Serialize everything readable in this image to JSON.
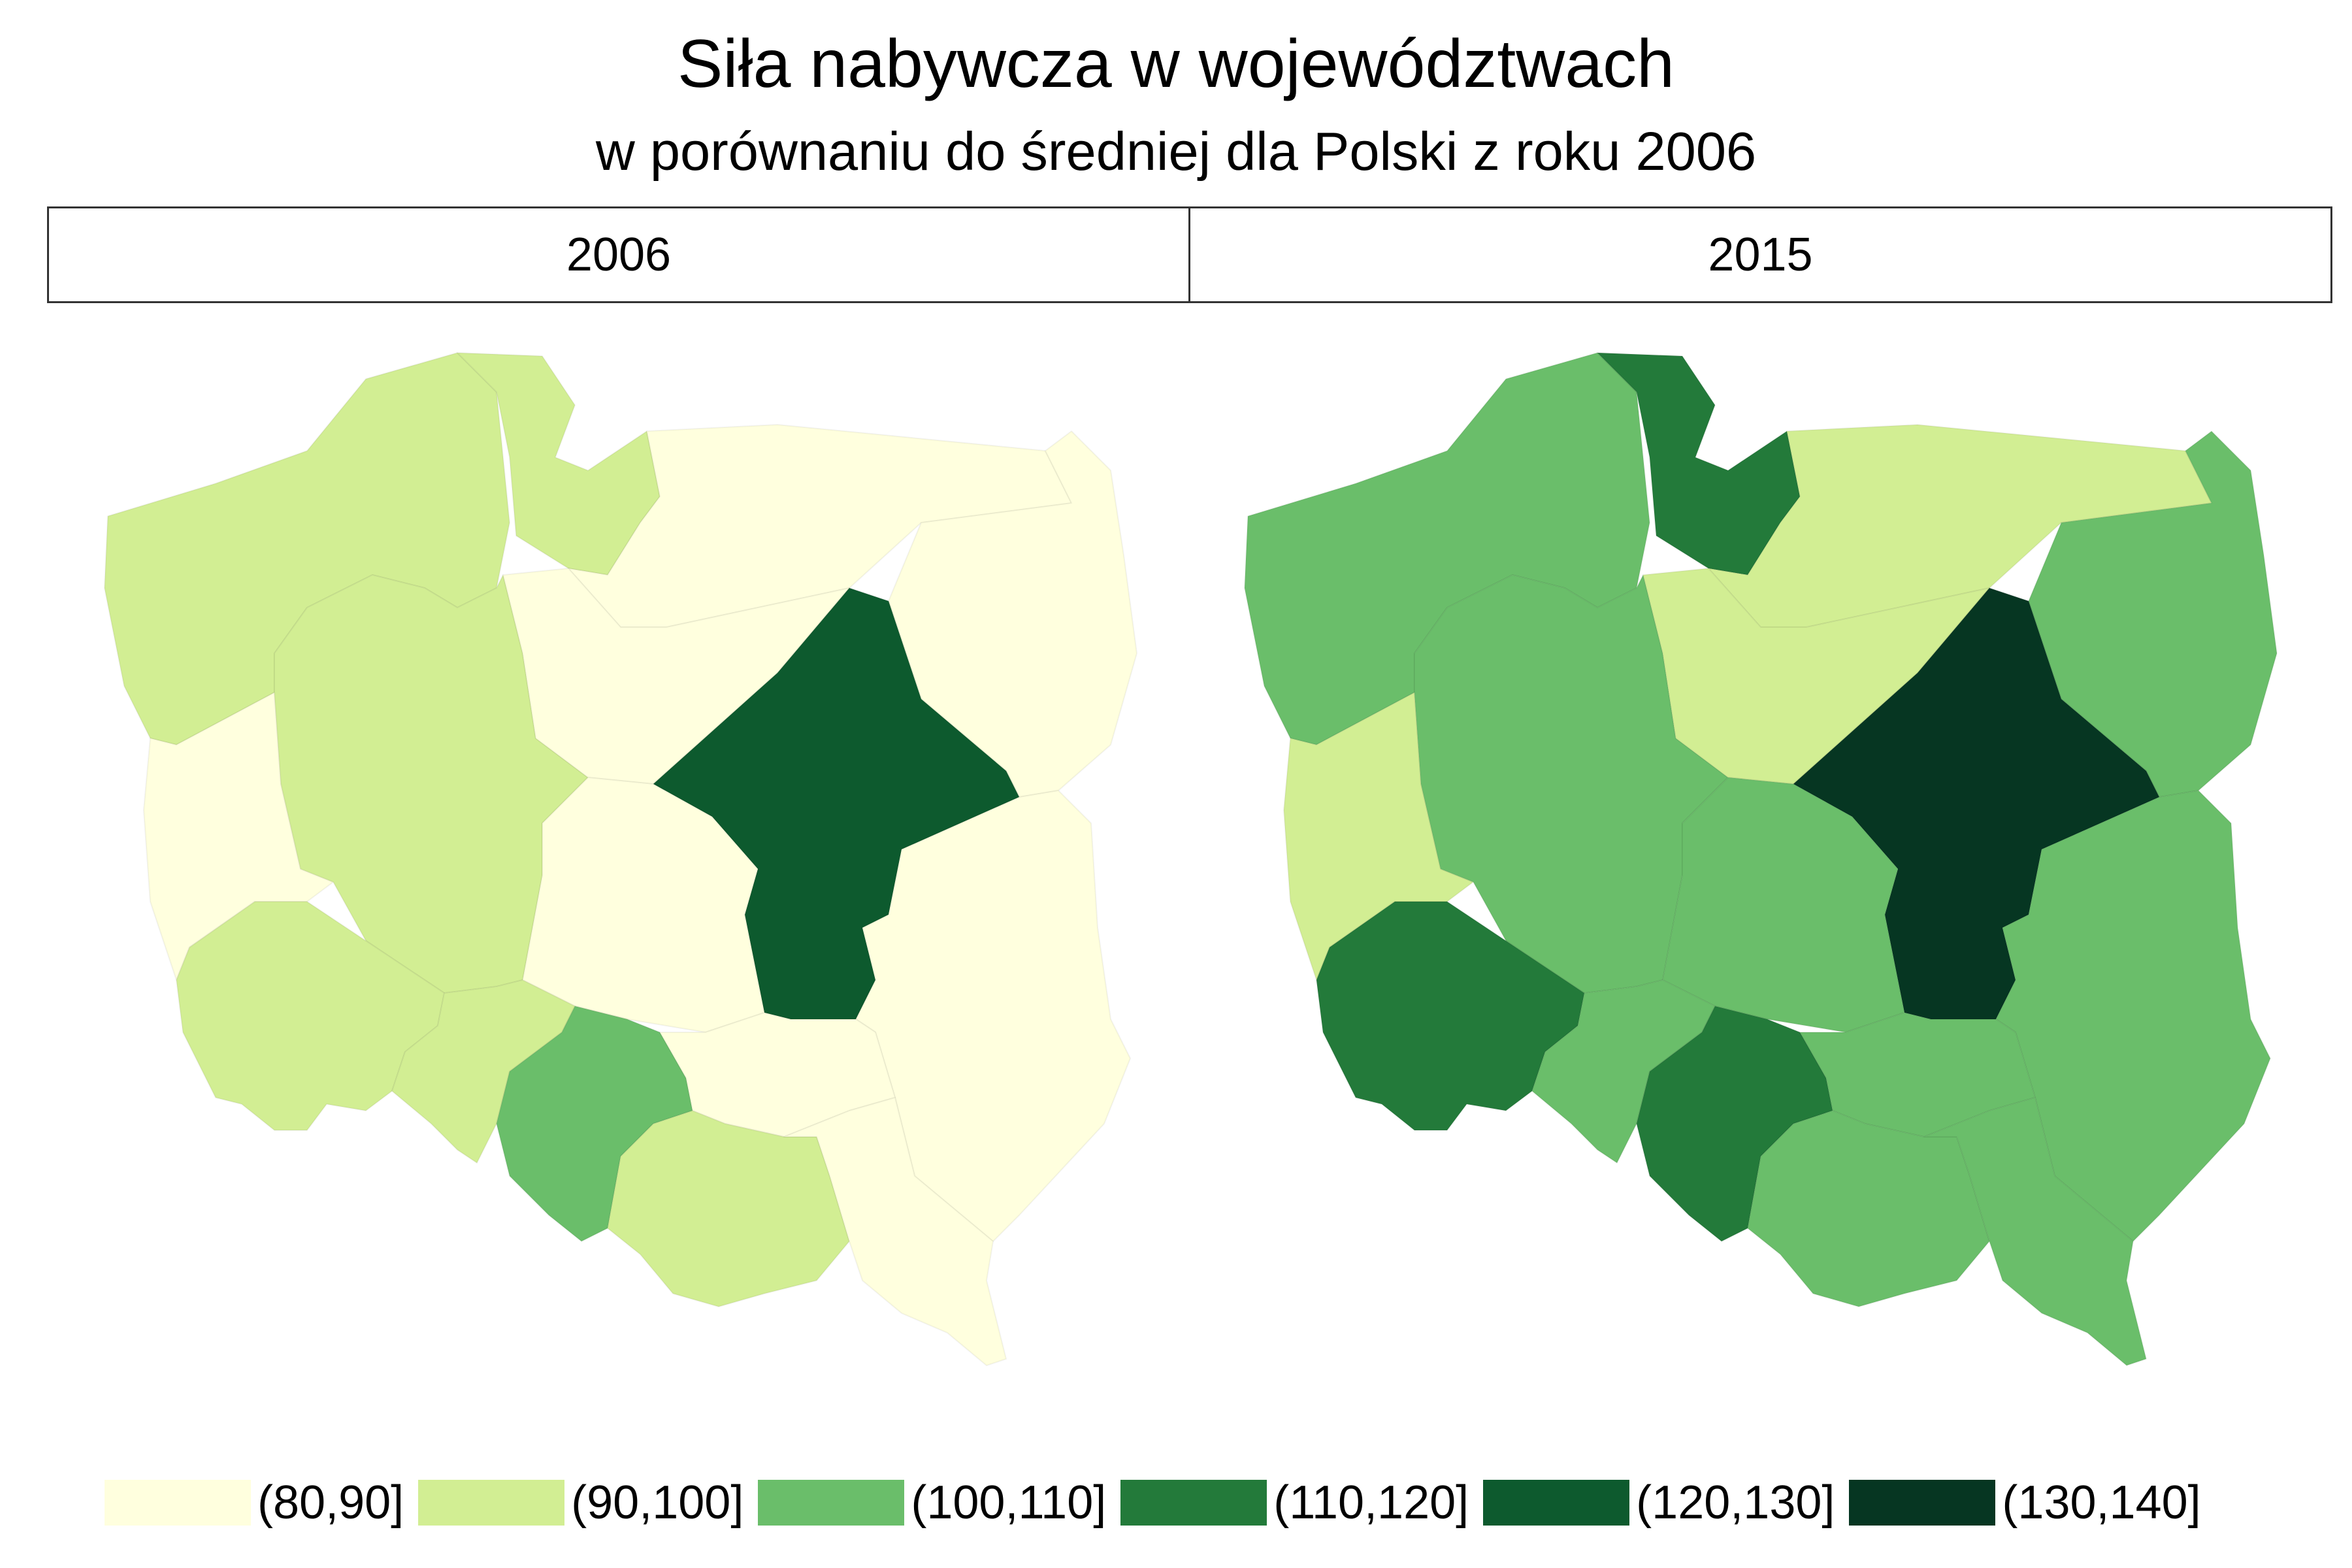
{
  "title": "Siła nabywcza w województwach",
  "subtitle": "w porównaniu do średniej dla Polski z roku 2006",
  "panels": [
    {
      "label": "2006"
    },
    {
      "label": "2015"
    }
  ],
  "legend": [
    {
      "label": "(80,90]",
      "color": "#ffffde"
    },
    {
      "label": "(90,100]",
      "color": "#d2ee93"
    },
    {
      "label": "(100,110]",
      "color": "#6abe6a"
    },
    {
      "label": "(110,120]",
      "color": "#237a3a"
    },
    {
      "label": "(120,130]",
      "color": "#0d5a2e"
    },
    {
      "label": "(130,140]",
      "color": "#063622"
    }
  ],
  "map_data": {
    "regions": [
      {
        "name": "zachodniopomorskie",
        "2006": "(90,100]",
        "2015": "(100,110]"
      },
      {
        "name": "pomorskie",
        "2006": "(90,100]",
        "2015": "(110,120]"
      },
      {
        "name": "warmińsko-mazurskie",
        "2006": "(80,90]",
        "2015": "(90,100]"
      },
      {
        "name": "podlaskie",
        "2006": "(80,90]",
        "2015": "(100,110]"
      },
      {
        "name": "lubuskie",
        "2006": "(80,90]",
        "2015": "(90,100]"
      },
      {
        "name": "wielkopolskie",
        "2006": "(90,100]",
        "2015": "(100,110]"
      },
      {
        "name": "kujawsko-pomorskie",
        "2006": "(80,90]",
        "2015": "(90,100]"
      },
      {
        "name": "mazowieckie",
        "2006": "(120,130]",
        "2015": "(130,140]"
      },
      {
        "name": "łódzkie",
        "2006": "(80,90]",
        "2015": "(100,110]"
      },
      {
        "name": "lubelskie",
        "2006": "(80,90]",
        "2015": "(100,110]"
      },
      {
        "name": "dolnośląskie",
        "2006": "(90,100]",
        "2015": "(110,120]"
      },
      {
        "name": "opolskie",
        "2006": "(90,100]",
        "2015": "(100,110]"
      },
      {
        "name": "śląskie",
        "2006": "(100,110]",
        "2015": "(110,120]"
      },
      {
        "name": "świętokrzyskie",
        "2006": "(80,90]",
        "2015": "(100,110]"
      },
      {
        "name": "małopolskie",
        "2006": "(90,100]",
        "2015": "(100,110]"
      },
      {
        "name": "podkarpackie",
        "2006": "(80,90]",
        "2015": "(100,110]"
      }
    ]
  }
}
